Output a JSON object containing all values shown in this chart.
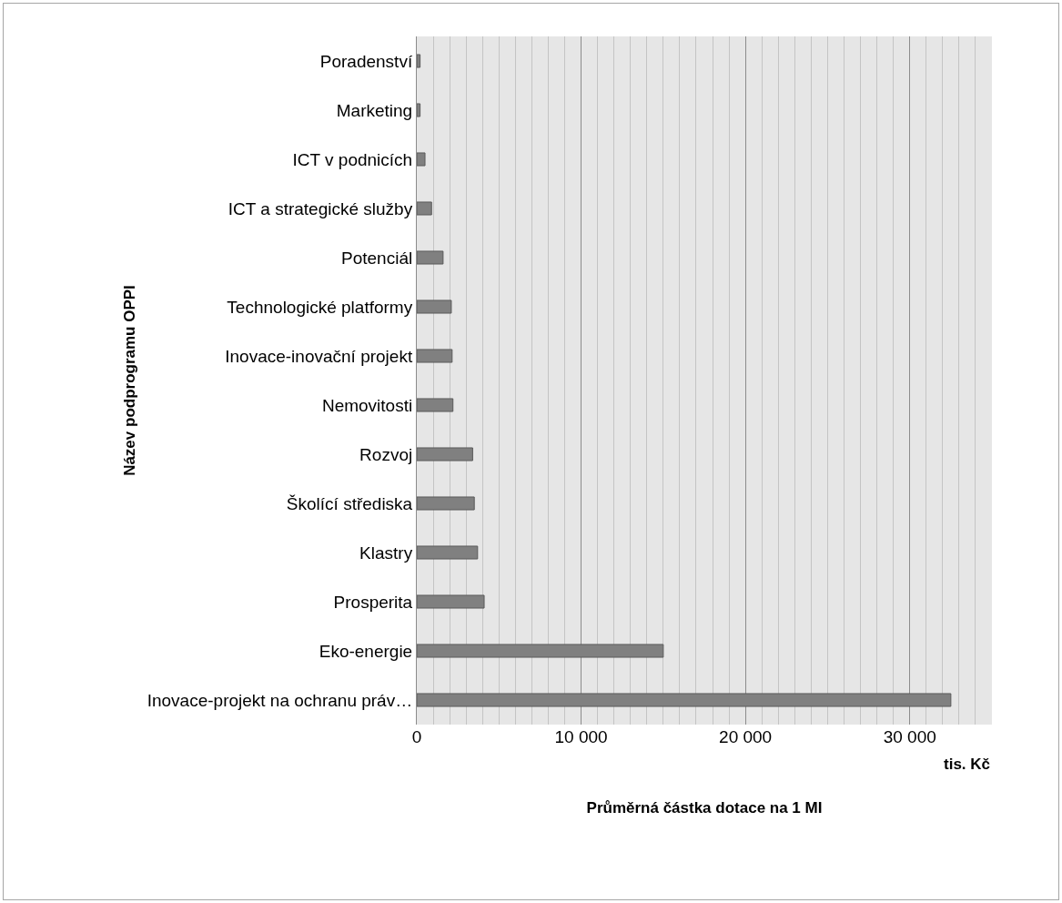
{
  "chart_data": {
    "type": "bar",
    "orientation": "horizontal",
    "xlabel": "Průměrná částka dotace na 1 MI",
    "ylabel": "Název podprogramu OPPI",
    "annotations": [
      "tis. Kč"
    ],
    "categories": [
      "Poradenství",
      "Marketing",
      "ICT v podnicích",
      "ICT a strategické služby",
      "Potenciál",
      "Technologické platformy",
      "Inovace-inovační projekt",
      "Nemovitosti",
      "Rozvoj",
      "Školící střediska",
      "Klastry",
      "Prosperita",
      "Eko-energie",
      "Inovace-projekt na ochranu práv…"
    ],
    "values": [
      200,
      200,
      500,
      900,
      1600,
      2100,
      2150,
      2200,
      3400,
      3500,
      3700,
      4100,
      15000,
      32500
    ],
    "color": "#808080",
    "xlim": [
      0,
      35000
    ],
    "xticks": [
      0,
      {
        "value": 1000,
        "label": null
      },
      {
        "value": 2000,
        "label": null
      },
      {
        "value": 3000,
        "label": null
      },
      {
        "value": 4000,
        "label": null
      },
      {
        "value": 5000,
        "label": null
      },
      {
        "value": 6000,
        "label": null
      },
      {
        "value": 7000,
        "label": null
      },
      {
        "value": 8000,
        "label": null
      },
      {
        "value": 9000,
        "label": null
      },
      {
        "value": 10000,
        "label": "10 000"
      },
      {
        "value": 11000,
        "label": null
      },
      {
        "value": 12000,
        "label": null
      },
      {
        "value": 13000,
        "label": null
      },
      {
        "value": 14000,
        "label": null
      },
      {
        "value": 15000,
        "label": null
      },
      {
        "value": 16000,
        "label": null
      },
      {
        "value": 17000,
        "label": null
      },
      {
        "value": 18000,
        "label": null
      },
      {
        "value": 19000,
        "label": null
      },
      {
        "value": 20000,
        "label": "20 000"
      },
      {
        "value": 21000,
        "label": null
      },
      {
        "value": 22000,
        "label": null
      },
      {
        "value": 23000,
        "label": null
      },
      {
        "value": 24000,
        "label": null
      },
      {
        "value": 25000,
        "label": null
      },
      {
        "value": 26000,
        "label": null
      },
      {
        "value": 27000,
        "label": null
      },
      {
        "value": 28000,
        "label": null
      },
      {
        "value": 29000,
        "label": null
      },
      {
        "value": 30000,
        "label": "30 000"
      },
      {
        "value": 31000,
        "label": null
      },
      {
        "value": 32000,
        "label": null
      },
      {
        "value": 33000,
        "label": null
      },
      {
        "value": 34000,
        "label": null
      },
      {
        "value": 35000,
        "label": null
      }
    ],
    "grid": "x"
  }
}
